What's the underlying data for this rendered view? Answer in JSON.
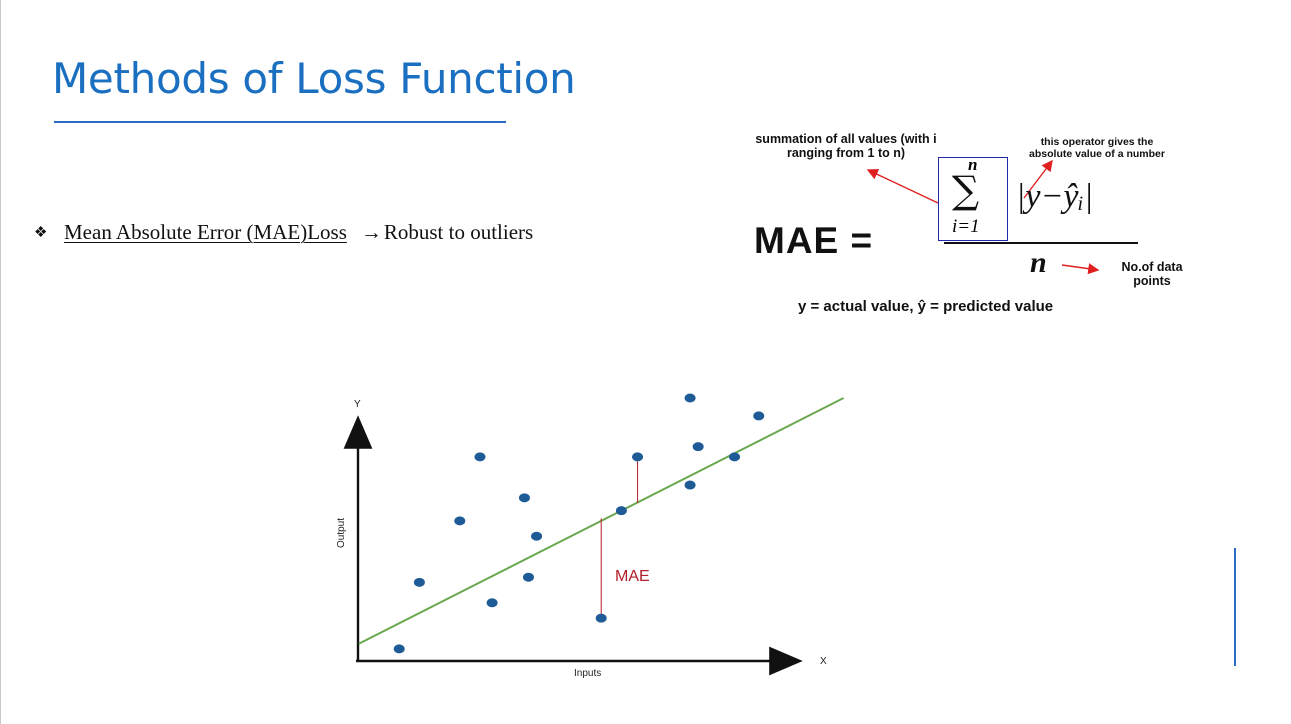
{
  "slide": {
    "title": "Methods of Loss Function",
    "bullet": {
      "icon": "four-diamond-bullet-icon",
      "term": "Mean Absolute Error (MAE)Loss",
      "arrow": "→",
      "note": "Robust to outliers"
    }
  },
  "formula": {
    "lhs": "MAE =",
    "sum_annotation": "summation of all values (with i ranging from 1 to n)",
    "abs_annotation": "this operator gives the absolute value of a number",
    "n_annotation": "No.of data points",
    "sum_upper": "n",
    "sum_lower": "i=1",
    "sigma": "∑",
    "abs_expression": "|y−ŷᵢ|",
    "denominator": "n",
    "caption": "y = actual value, ŷ = predicted value"
  },
  "chart_data": {
    "type": "scatter",
    "ylabel": "Output",
    "xlabel": "Inputs",
    "y_axis_letter": "Y",
    "x_axis_letter": "X",
    "annotation": "MAE",
    "points": [
      {
        "x": 0.05,
        "y": 0.02
      },
      {
        "x": 0.1,
        "y": 0.28
      },
      {
        "x": 0.2,
        "y": 0.52
      },
      {
        "x": 0.25,
        "y": 0.77
      },
      {
        "x": 0.28,
        "y": 0.2
      },
      {
        "x": 0.37,
        "y": 0.3
      },
      {
        "x": 0.36,
        "y": 0.61
      },
      {
        "x": 0.39,
        "y": 0.46
      },
      {
        "x": 0.55,
        "y": 0.14
      },
      {
        "x": 0.6,
        "y": 0.56
      },
      {
        "x": 0.64,
        "y": 0.77
      },
      {
        "x": 0.77,
        "y": 0.66
      },
      {
        "x": 0.79,
        "y": 0.81
      },
      {
        "x": 0.77,
        "y": 1.0
      },
      {
        "x": 0.88,
        "y": 0.77
      },
      {
        "x": 0.94,
        "y": 0.93
      }
    ],
    "regression_line": {
      "x0": -0.05,
      "y0": 0.04,
      "x1": 1.15,
      "y1": 1.0
    },
    "residuals": [
      {
        "x": 0.55,
        "y_point": 0.14,
        "y_line": 0.53
      },
      {
        "x": 0.64,
        "y_point": 0.77,
        "y_line": 0.59
      }
    ],
    "colors": {
      "points": "#1f5b96",
      "line": "#6aa84f",
      "residual": "#b3202a"
    }
  }
}
